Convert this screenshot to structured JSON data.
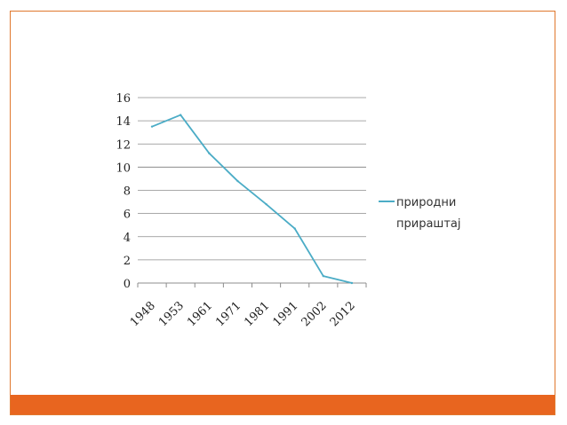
{
  "colors": {
    "series": "#4bacc6",
    "border": "#e0782e",
    "footer": "#e8651f",
    "grid": "#8c8c8c"
  },
  "chart_data": {
    "type": "line",
    "title": "",
    "xlabel": "",
    "ylabel": "",
    "x": [
      "1948",
      "1953",
      "1961",
      "1971",
      "1981",
      "1991",
      "2002",
      "2012"
    ],
    "series": [
      {
        "name": "природни прираштај",
        "values": [
          13.5,
          14.5,
          11.2,
          8.8,
          6.8,
          4.7,
          0.6,
          0.0
        ]
      }
    ],
    "y_ticks": [
      "0",
      "2",
      "4",
      "6",
      "8",
      "10",
      "12",
      "14",
      "16"
    ],
    "ylim": [
      0,
      16
    ],
    "grid": true,
    "legend_position": "right",
    "legend_lines": [
      "природни",
      "прираштај"
    ]
  }
}
